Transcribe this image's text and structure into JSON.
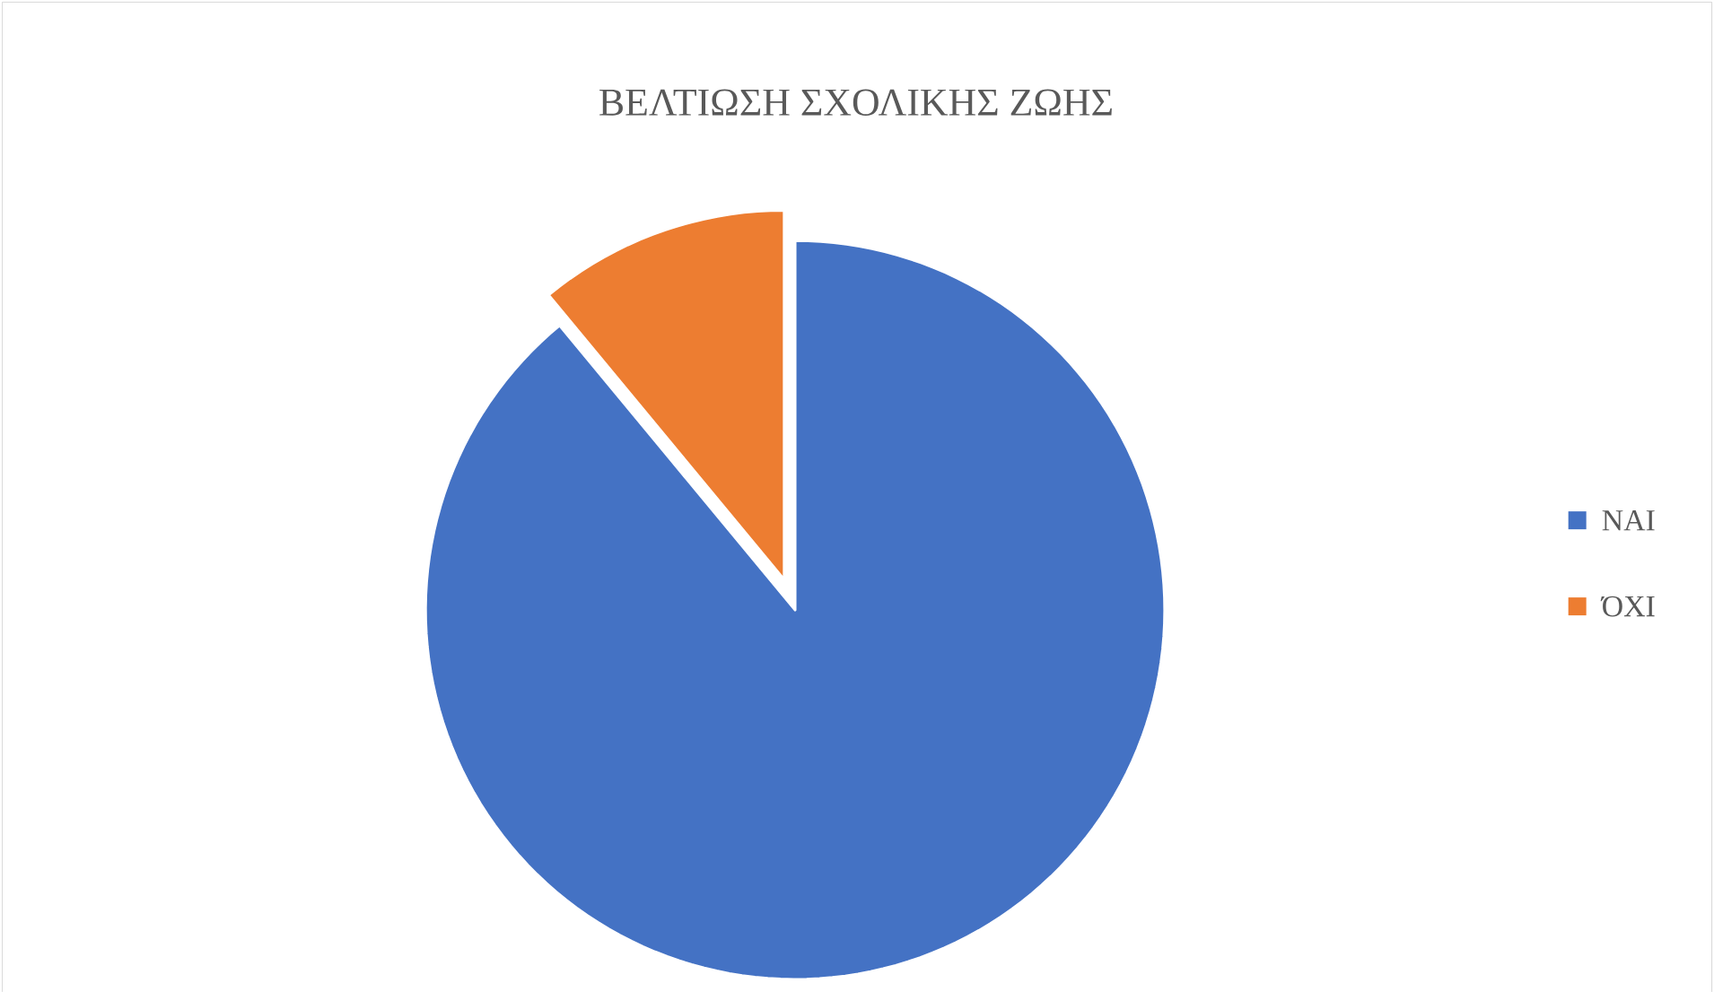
{
  "chart_data": {
    "type": "pie",
    "title": "ΒΕΛΤΙΩΣΗ ΣΧΟΛΙΚΗΣ ΖΩΗΣ",
    "categories": [
      "ΝΑΙ",
      "ΌΧΙ"
    ],
    "values": [
      89,
      11
    ],
    "colors": [
      "#4472c4",
      "#ed7d31"
    ],
    "legend": "right"
  }
}
